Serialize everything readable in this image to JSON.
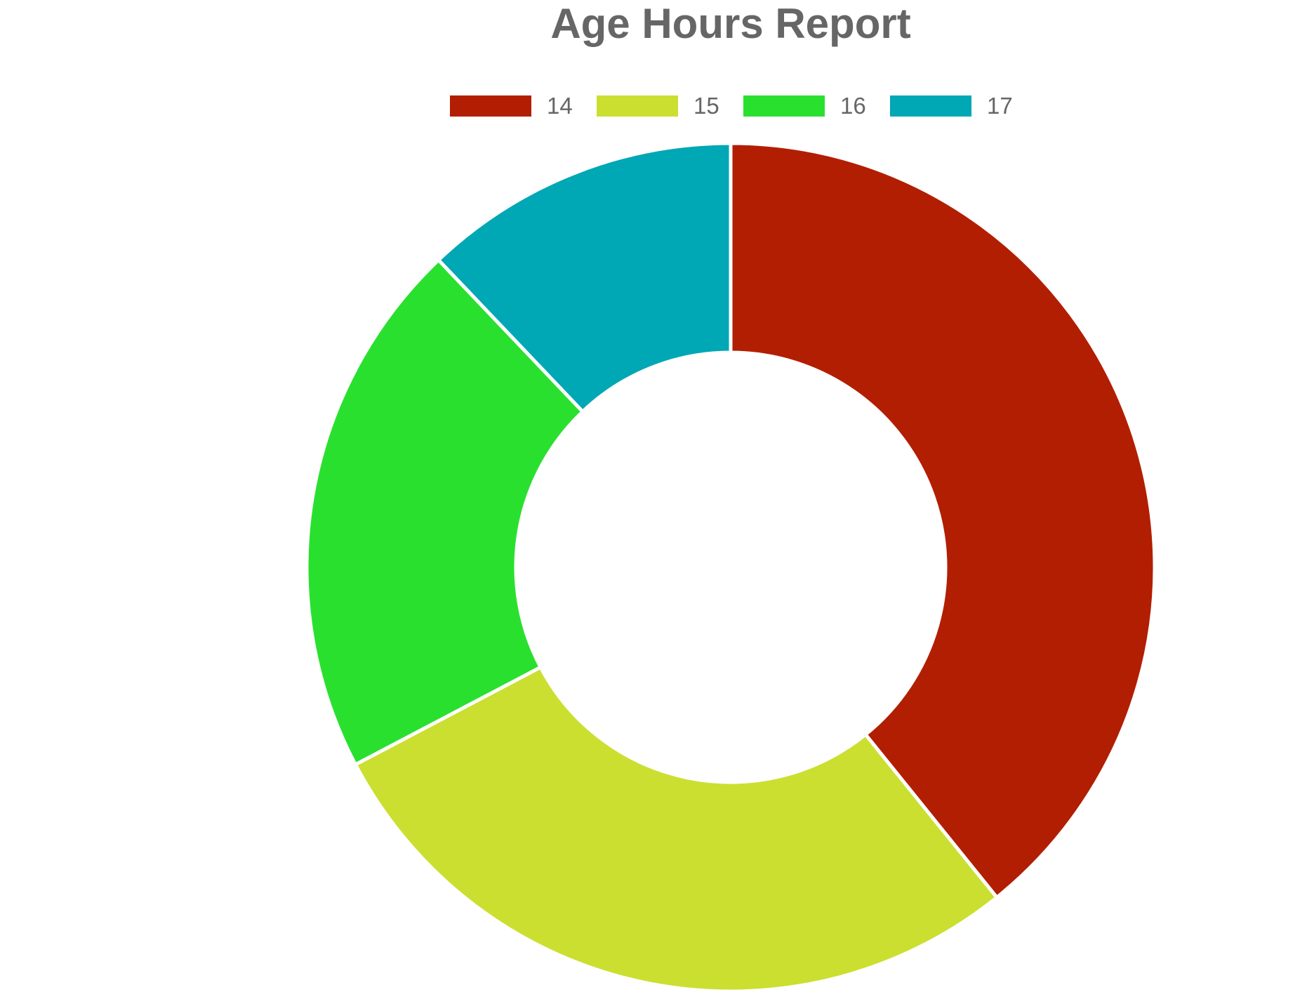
{
  "chart_data": {
    "type": "pie",
    "title": "Age Hours  Report",
    "categories": [
      "14",
      "15",
      "16",
      "17"
    ],
    "values": [
      39.2,
      28.1,
      20.6,
      12.1
    ],
    "colors": [
      "#b21e02",
      "#cbdf30",
      "#2ae02f",
      "#00a7b5"
    ],
    "donut": true,
    "legend_position": "top-center"
  }
}
